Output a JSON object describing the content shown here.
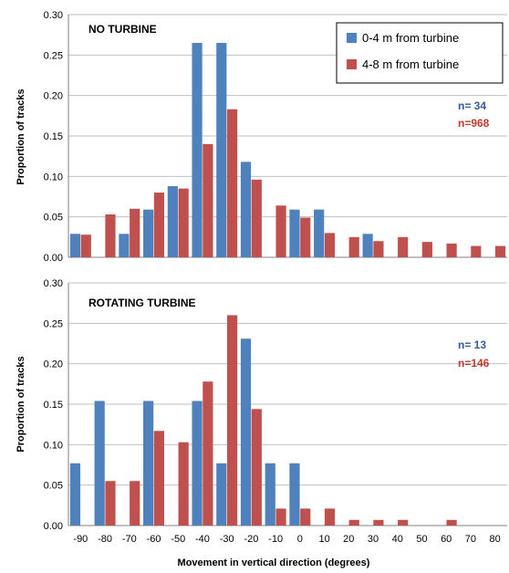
{
  "chart_data": [
    {
      "type": "bar",
      "title": "NO TURBINE",
      "ylabel": "Proportion of tracks",
      "xlabel": "",
      "ylim": [
        0,
        0.3
      ],
      "yticks": [
        "0.00",
        "0.05",
        "0.10",
        "0.15",
        "0.20",
        "0.25",
        "0.30"
      ],
      "categories": [
        "-90",
        "-80",
        "-70",
        "-60",
        "-50",
        "-40",
        "-30",
        "-20",
        "-10",
        "0",
        "10",
        "20",
        "30",
        "40",
        "50",
        "60",
        "70",
        "80"
      ],
      "series": [
        {
          "name": "0-4 m from turbine",
          "color": "#4f81bd",
          "values": [
            0.029,
            0,
            0.029,
            0.059,
            0.088,
            0.265,
            0.265,
            0.118,
            0,
            0.059,
            0.059,
            0,
            0.029,
            0,
            0,
            0,
            0,
            0
          ]
        },
        {
          "name": "4-8 m from turbine",
          "color": "#c0504d",
          "values": [
            0.028,
            0.053,
            0.06,
            0.08,
            0.085,
            0.14,
            0.183,
            0.096,
            0.064,
            0.049,
            0.03,
            0.025,
            0.02,
            0.025,
            0.019,
            0.017,
            0.014,
            0.014
          ]
        }
      ],
      "counts": [
        {
          "text": "n=  34",
          "color": "#2e5c9e"
        },
        {
          "text": "n=968",
          "color": "#c0392b"
        }
      ],
      "legend": {
        "position": "top-right"
      },
      "grid": true
    },
    {
      "type": "bar",
      "title": "ROTATING TURBINE",
      "ylabel": "Proportion of tracks",
      "xlabel": "Movement in vertical direction (degrees)",
      "ylim": [
        0,
        0.3
      ],
      "yticks": [
        "0.00",
        "0.05",
        "0.10",
        "0.15",
        "0.20",
        "0.25",
        "0.30"
      ],
      "categories": [
        "-90",
        "-80",
        "-70",
        "-60",
        "-50",
        "-40",
        "-30",
        "-20",
        "-10",
        "0",
        "10",
        "20",
        "30",
        "40",
        "50",
        "60",
        "70",
        "80"
      ],
      "series": [
        {
          "name": "0-4 m from turbine",
          "color": "#4f81bd",
          "values": [
            0.077,
            0.154,
            0,
            0.154,
            0,
            0.154,
            0.077,
            0.231,
            0.077,
            0.077,
            0,
            0,
            0,
            0,
            0,
            0,
            0,
            0
          ]
        },
        {
          "name": "4-8 m from turbine",
          "color": "#c0504d",
          "values": [
            0,
            0.055,
            0.055,
            0.117,
            0.103,
            0.178,
            0.26,
            0.144,
            0.021,
            0.021,
            0.021,
            0.007,
            0.007,
            0.007,
            0,
            0.007,
            0,
            0
          ]
        }
      ],
      "counts": [
        {
          "text": "n=  13",
          "color": "#2e5c9e"
        },
        {
          "text": "n=146",
          "color": "#c0392b"
        }
      ],
      "grid": true
    }
  ]
}
